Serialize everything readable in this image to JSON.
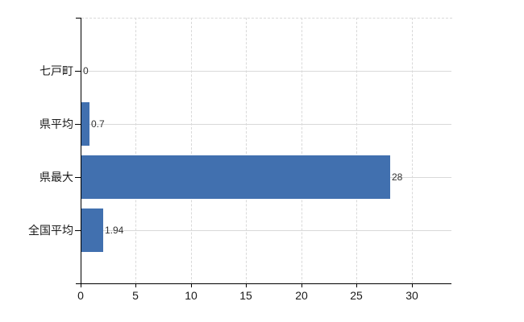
{
  "chart_data": {
    "type": "bar",
    "orientation": "horizontal",
    "title": "",
    "xlabel": "",
    "ylabel": "",
    "categories": [
      "七戸町",
      "県平均",
      "県最大",
      "全国平均"
    ],
    "values": [
      0,
      0.7,
      28,
      1.94
    ],
    "value_labels": [
      "0",
      "0.7",
      "28",
      "1.94"
    ],
    "x_ticks": [
      0,
      5,
      10,
      15,
      20,
      25,
      30
    ],
    "x_tick_labels": [
      "0",
      "5",
      "10",
      "15",
      "20",
      "25",
      "30"
    ],
    "xlim": [
      0,
      33.6
    ],
    "legend": "none",
    "grid": {
      "vertical": "dashed",
      "horizontal": "solid",
      "top_border": "dashed"
    },
    "colors": {
      "bar": "#4170af",
      "grid": "#d9d9d9",
      "axis": "#000000",
      "tick_label": "#1a1a1a",
      "value_label": "#333333",
      "background": "#ffffff"
    }
  }
}
